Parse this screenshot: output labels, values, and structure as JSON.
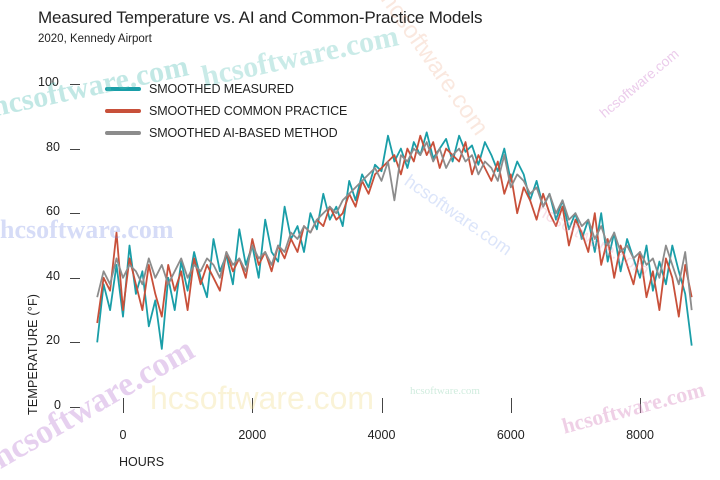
{
  "chart_data": {
    "type": "line",
    "title": "Measured Temperature vs. AI and Common-Practice Models",
    "subtitle": "2020, Kennedy Airport",
    "xlabel": "HOURS",
    "ylabel": "TEMPERATURE (°F)",
    "xlim": [
      -400,
      8800
    ],
    "ylim": [
      0,
      100
    ],
    "xticks": [
      0,
      2000,
      4000,
      6000,
      8000
    ],
    "yticks": [
      0,
      20,
      40,
      60,
      80,
      100
    ],
    "grid": false,
    "legend_position": "upper-left",
    "x": [
      -400,
      -300,
      -200,
      -100,
      0,
      100,
      200,
      300,
      400,
      500,
      600,
      700,
      800,
      900,
      1000,
      1100,
      1200,
      1300,
      1400,
      1500,
      1600,
      1700,
      1800,
      1900,
      2000,
      2100,
      2200,
      2300,
      2400,
      2500,
      2600,
      2700,
      2800,
      2900,
      3000,
      3100,
      3200,
      3300,
      3400,
      3500,
      3600,
      3700,
      3800,
      3900,
      4000,
      4100,
      4200,
      4300,
      4400,
      4500,
      4600,
      4700,
      4800,
      4900,
      5000,
      5100,
      5200,
      5300,
      5400,
      5500,
      5600,
      5700,
      5800,
      5900,
      6000,
      6100,
      6200,
      6300,
      6400,
      6500,
      6600,
      6700,
      6800,
      6900,
      7000,
      7100,
      7200,
      7300,
      7400,
      7500,
      7600,
      7700,
      7800,
      7900,
      8000,
      8100,
      8200,
      8300,
      8400,
      8500,
      8600,
      8700,
      8800
    ],
    "series": [
      {
        "name": "SMOOTHED MEASURED",
        "color": "#1a9ea8",
        "values": [
          20,
          38,
          30,
          44,
          28,
          50,
          35,
          42,
          25,
          33,
          18,
          40,
          30,
          45,
          36,
          48,
          40,
          34,
          52,
          42,
          47,
          38,
          55,
          44,
          50,
          40,
          58,
          48,
          45,
          62,
          52,
          56,
          48,
          60,
          55,
          66,
          58,
          62,
          56,
          70,
          64,
          72,
          68,
          75,
          73,
          84,
          76,
          80,
          74,
          82,
          78,
          85,
          77,
          80,
          83,
          76,
          84,
          79,
          81,
          75,
          82,
          78,
          73,
          80,
          70,
          76,
          72,
          64,
          70,
          62,
          66,
          58,
          64,
          55,
          60,
          52,
          58,
          48,
          60,
          45,
          54,
          42,
          52,
          46,
          40,
          50,
          36,
          45,
          38,
          50,
          42,
          35,
          19
        ]
      },
      {
        "name": "SMOOTHED COMMON PRACTICE",
        "color": "#c8503a",
        "values": [
          26,
          40,
          36,
          54,
          30,
          46,
          38,
          30,
          44,
          35,
          28,
          44,
          36,
          42,
          30,
          46,
          38,
          44,
          40,
          36,
          48,
          42,
          46,
          40,
          52,
          44,
          48,
          42,
          50,
          46,
          52,
          48,
          56,
          54,
          58,
          56,
          62,
          58,
          60,
          66,
          62,
          70,
          66,
          72,
          74,
          76,
          78,
          72,
          80,
          76,
          84,
          78,
          82,
          74,
          80,
          78,
          76,
          82,
          72,
          78,
          74,
          70,
          76,
          66,
          72,
          60,
          68,
          64,
          58,
          66,
          60,
          56,
          62,
          50,
          58,
          54,
          48,
          60,
          44,
          52,
          40,
          50,
          44,
          38,
          48,
          34,
          42,
          30,
          46,
          40,
          28,
          44,
          34
        ]
      },
      {
        "name": "SMOOTHED AI-BASED METHOD",
        "color": "#8c8c8c",
        "values": [
          34,
          42,
          38,
          46,
          40,
          44,
          42,
          38,
          46,
          40,
          44,
          38,
          42,
          46,
          40,
          44,
          42,
          46,
          44,
          40,
          48,
          44,
          46,
          42,
          50,
          46,
          48,
          44,
          50,
          48,
          54,
          52,
          56,
          54,
          58,
          60,
          62,
          60,
          64,
          66,
          68,
          70,
          72,
          74,
          70,
          76,
          64,
          78,
          76,
          80,
          78,
          82,
          76,
          80,
          74,
          78,
          80,
          76,
          78,
          72,
          76,
          74,
          70,
          78,
          68,
          72,
          70,
          66,
          68,
          62,
          66,
          60,
          64,
          58,
          60,
          56,
          58,
          52,
          56,
          50,
          54,
          48,
          50,
          46,
          48,
          44,
          46,
          40,
          50,
          44,
          38,
          48,
          30
        ]
      }
    ]
  },
  "watermark_text": "hcsoftware.com"
}
